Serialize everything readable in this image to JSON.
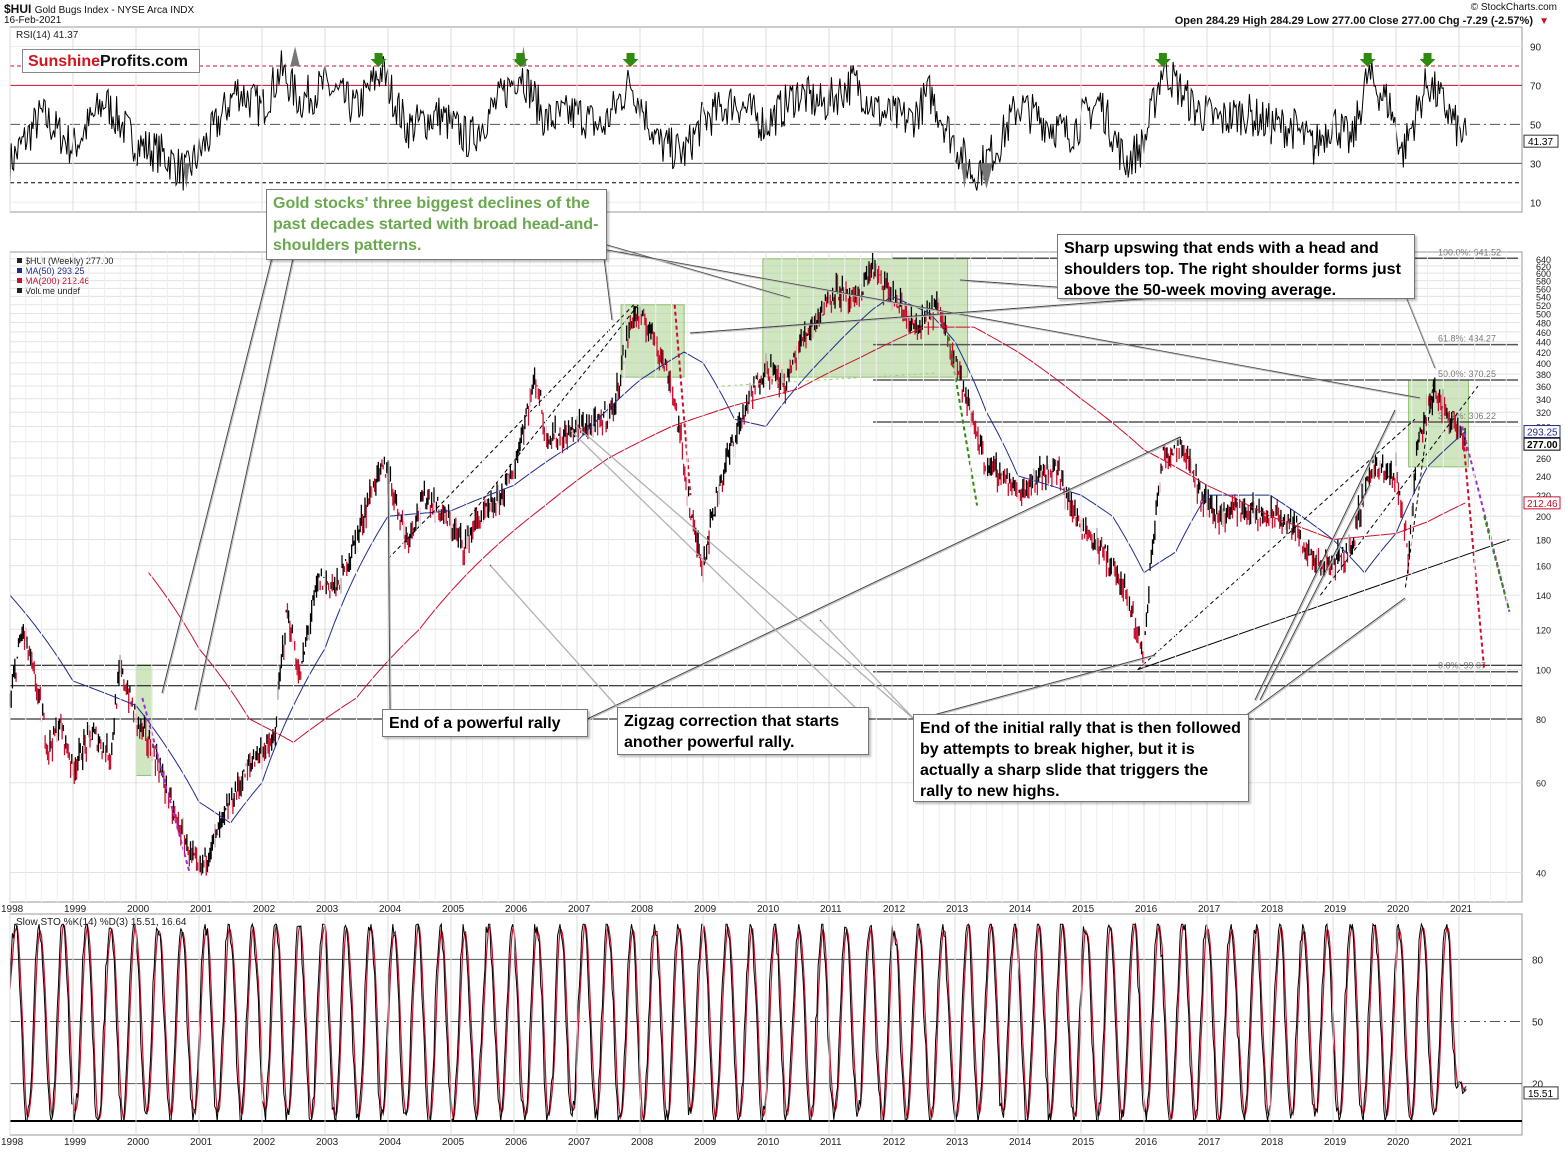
{
  "header": {
    "symbol": "$HUI",
    "name": "Gold Bugs Index - NYSE Arca INDX",
    "date": "16-Feb-2021",
    "source": "© StockCharts.com",
    "ohlc": "Open 284.29  High 284.29  Low 277.00  Close 277.00  Chg -7.29 (-2.57%)",
    "chg_icon": "down-triangle-icon"
  },
  "logo": {
    "part1": "Sunshine",
    "part2": "Profits.com"
  },
  "colors": {
    "price": "#000000",
    "ma50": "#1f2d8a",
    "ma200": "#c8102e",
    "rsi": "#000000",
    "sto_k": "#000000",
    "sto_d": "#c8102e",
    "zone": "#a9d18e",
    "arrow": "#2e8b10",
    "fib": "#555555"
  },
  "annotations": {
    "hs": "Gold stocks' three biggest declines of the past decades started with broad head-and-shoulders patterns.",
    "sharp": "Sharp upswing that ends with a head and shoulders top. The right shoulder forms just above the 50-week moving average.",
    "end_rally": "End of a powerful rally",
    "zigzag": "Zigzag correction that starts another powerful rally.",
    "initial": "End of the initial rally that is then followed by attempts to break higher, but it is actually a sharp slide that triggers the rally to new highs."
  },
  "chart_data": [
    {
      "type": "line",
      "panel": "RSI",
      "title": "RSI(14) 41.37",
      "last_value": 41.37,
      "last_label": "41.37",
      "y_ticks": [
        10,
        30,
        50,
        70,
        90
      ],
      "ylim": [
        5,
        100
      ],
      "reference_lines": [
        20,
        30,
        50,
        70,
        80
      ],
      "overbought_arrows_years": [
        2003.85,
        2006.1,
        2007.85,
        2016.3,
        2019.55,
        2020.5
      ],
      "series": [
        {
          "name": "RSI(14)",
          "x": [
            1998.0,
            1998.5,
            1999.0,
            1999.5,
            2000.0,
            2000.4,
            2000.8,
            2001.2,
            2001.6,
            2002.0,
            2002.3,
            2002.6,
            2003.0,
            2003.5,
            2003.9,
            2004.3,
            2004.8,
            2005.3,
            2005.8,
            2006.1,
            2006.5,
            2007.0,
            2007.4,
            2007.85,
            2008.3,
            2008.7,
            2009.0,
            2009.5,
            2010.0,
            2010.5,
            2010.9,
            2011.4,
            2011.8,
            2012.3,
            2012.6,
            2013.0,
            2013.3,
            2013.7,
            2014.0,
            2014.4,
            2014.8,
            2015.3,
            2015.7,
            2016.0,
            2016.3,
            2016.8,
            2017.2,
            2017.6,
            2018.0,
            2018.4,
            2018.7,
            2019.0,
            2019.3,
            2019.55,
            2019.9,
            2020.1,
            2020.5,
            2020.8,
            2021.0,
            2021.13
          ],
          "values": [
            30,
            55,
            38,
            62,
            40,
            35,
            25,
            45,
            68,
            58,
            78,
            62,
            70,
            58,
            78,
            48,
            55,
            42,
            64,
            78,
            52,
            56,
            48,
            72,
            40,
            35,
            52,
            62,
            50,
            66,
            60,
            72,
            56,
            52,
            66,
            40,
            24,
            40,
            60,
            52,
            45,
            62,
            30,
            40,
            80,
            58,
            52,
            56,
            50,
            48,
            38,
            52,
            40,
            75,
            60,
            35,
            72,
            58,
            46,
            41.37
          ]
        }
      ]
    },
    {
      "type": "line",
      "panel": "Price",
      "title": "$HUI (Weekly) 277.00",
      "legend": [
        "$HUI (Weekly) 277.00",
        "MA(50) 293.25",
        "MA(200) 212.46",
        "Volume undef"
      ],
      "scale": "log",
      "ylim": [
        35,
        660
      ],
      "y_ticks": [
        40,
        60,
        80,
        100,
        120,
        140,
        160,
        180,
        200,
        220,
        240,
        260,
        280,
        300,
        320,
        340,
        360,
        380,
        400,
        420,
        440,
        460,
        480,
        500,
        520,
        540,
        560,
        580,
        600,
        620,
        640
      ],
      "x_ticks": [
        "1998",
        "1999",
        "2000",
        "2001",
        "2002",
        "2003",
        "2004",
        "2005",
        "2006",
        "2007",
        "2008",
        "2009",
        "2010",
        "2011",
        "2012",
        "2013",
        "2014",
        "2015",
        "2016",
        "2017",
        "2018",
        "2019",
        "2020",
        "2021"
      ],
      "xlim": [
        1998.0,
        2022.0
      ],
      "price_labels": [
        "293.25",
        "277.00",
        "212.46"
      ],
      "fibonacci": [
        {
          "label": "100.0%: 641.52",
          "value": 641.52
        },
        {
          "label": "61.8%: 434.27",
          "value": 434.27
        },
        {
          "label": "50.0%: 370.25",
          "value": 370.25
        },
        {
          "label": "38.2%: 306.22",
          "value": 306.22
        },
        {
          "label": "0.0%: 99.07",
          "value": 99.07
        }
      ],
      "horizontal_lines": [
        102,
        93,
        80
      ],
      "series": [
        {
          "name": "$HUI (Weekly)",
          "x": [
            1998.0,
            1998.2,
            1998.4,
            1998.6,
            1998.8,
            1999.0,
            1999.3,
            1999.6,
            1999.75,
            2000.0,
            2000.3,
            2000.6,
            2000.85,
            2001.0,
            2001.3,
            2001.6,
            2001.9,
            2002.2,
            2002.4,
            2002.6,
            2002.9,
            2003.2,
            2003.5,
            2003.8,
            2003.95,
            2004.3,
            2004.6,
            2004.9,
            2005.2,
            2005.4,
            2005.7,
            2006.0,
            2006.35,
            2006.5,
            2006.8,
            2007.0,
            2007.3,
            2007.6,
            2007.9,
            2008.2,
            2008.5,
            2008.8,
            2009.0,
            2009.3,
            2009.7,
            2010.0,
            2010.3,
            2010.6,
            2010.9,
            2011.1,
            2011.4,
            2011.7,
            2011.8,
            2012.1,
            2012.4,
            2012.7,
            2012.9,
            2013.2,
            2013.5,
            2013.8,
            2014.0,
            2014.3,
            2014.6,
            2014.9,
            2015.2,
            2015.5,
            2015.8,
            2016.0,
            2016.3,
            2016.6,
            2016.9,
            2017.2,
            2017.5,
            2017.8,
            2018.1,
            2018.4,
            2018.7,
            2019.0,
            2019.3,
            2019.6,
            2019.9,
            2020.0,
            2020.2,
            2020.35,
            2020.6,
            2020.8,
            2021.0,
            2021.13
          ],
          "values": [
            85,
            120,
            95,
            70,
            78,
            64,
            75,
            68,
            100,
            80,
            68,
            52,
            44,
            40,
            48,
            58,
            68,
            72,
            130,
            95,
            150,
            145,
            180,
            235,
            250,
            180,
            220,
            200,
            175,
            195,
            210,
            245,
            375,
            290,
            285,
            300,
            300,
            330,
            500,
            460,
            360,
            200,
            160,
            240,
            330,
            395,
            360,
            450,
            510,
            560,
            520,
            620,
            580,
            520,
            460,
            520,
            450,
            330,
            250,
            240,
            220,
            240,
            250,
            200,
            180,
            160,
            130,
            105,
            260,
            280,
            220,
            200,
            210,
            200,
            200,
            190,
            160,
            160,
            175,
            250,
            240,
            245,
            165,
            280,
            350,
            320,
            300,
            277
          ]
        },
        {
          "name": "MA(50)",
          "x": [
            1998.0,
            1999.0,
            2000.0,
            2001.0,
            2001.5,
            2002.0,
            2003.0,
            2004.0,
            2005.0,
            2006.0,
            2007.0,
            2008.0,
            2008.7,
            2009.0,
            2009.5,
            2010.0,
            2011.0,
            2011.7,
            2012.0,
            2012.6,
            2013.0,
            2013.5,
            2014.0,
            2015.0,
            2015.5,
            2016.0,
            2016.5,
            2017.0,
            2018.0,
            2019.0,
            2019.5,
            2020.0,
            2020.5,
            2021.1
          ],
          "values": [
            140,
            95,
            85,
            55,
            50,
            60,
            110,
            200,
            205,
            230,
            280,
            370,
            420,
            400,
            310,
            300,
            420,
            510,
            540,
            500,
            440,
            320,
            240,
            220,
            200,
            155,
            170,
            220,
            220,
            180,
            155,
            185,
            250,
            293.25
          ]
        },
        {
          "name": "MA(200)",
          "x": [
            2000.2,
            2001.0,
            2001.8,
            2002.5,
            2003.5,
            2004.5,
            2005.5,
            2006.5,
            2007.5,
            2008.5,
            2009.5,
            2010.5,
            2011.5,
            2012.5,
            2013.3,
            2014.0,
            2015.0,
            2016.0,
            2017.0,
            2018.0,
            2019.0,
            2020.0,
            2020.5,
            2021.1
          ],
          "values": [
            155,
            110,
            80,
            72,
            88,
            120,
            165,
            210,
            260,
            300,
            330,
            355,
            410,
            470,
            470,
            420,
            340,
            270,
            230,
            200,
            180,
            185,
            195,
            212.46
          ]
        }
      ]
    },
    {
      "type": "line",
      "panel": "Slow STO",
      "title": "Slow STO %K(14) %D(3) 15.51, 16.64",
      "y_ticks": [
        20,
        50,
        80
      ],
      "ylim": [
        0,
        100
      ],
      "last_value": 15.51,
      "last_label": "15.51",
      "series": [
        {
          "name": "%K(14)",
          "last": 15.51
        },
        {
          "name": "%D(3)",
          "last": 16.64
        }
      ]
    }
  ]
}
